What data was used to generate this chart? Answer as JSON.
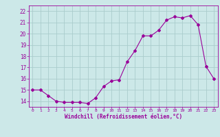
{
  "x": [
    0,
    1,
    2,
    3,
    4,
    5,
    6,
    7,
    8,
    9,
    10,
    11,
    12,
    13,
    14,
    15,
    16,
    17,
    18,
    19,
    20,
    21,
    22,
    23
  ],
  "y": [
    15.0,
    15.0,
    14.5,
    14.0,
    13.9,
    13.9,
    13.9,
    13.8,
    14.3,
    15.3,
    15.8,
    15.9,
    17.5,
    18.5,
    19.8,
    19.8,
    20.3,
    21.2,
    21.5,
    21.4,
    21.6,
    20.8,
    17.1,
    16.0
  ],
  "xlim": [
    -0.5,
    23.5
  ],
  "ylim": [
    13.5,
    22.5
  ],
  "yticks": [
    14,
    15,
    16,
    17,
    18,
    19,
    20,
    21,
    22
  ],
  "xticks": [
    0,
    1,
    2,
    3,
    4,
    5,
    6,
    7,
    8,
    9,
    10,
    11,
    12,
    13,
    14,
    15,
    16,
    17,
    18,
    19,
    20,
    21,
    22,
    23
  ],
  "xlabel": "Windchill (Refroidissement éolien,°C)",
  "line_color": "#990099",
  "marker": "D",
  "marker_size": 2,
  "bg_color": "#cce8e8",
  "grid_color": "#aacccc"
}
